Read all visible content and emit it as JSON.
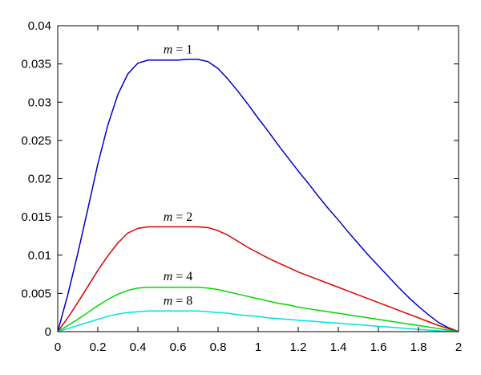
{
  "chart_data": {
    "type": "line",
    "title": "",
    "xlabel": "",
    "ylabel": "",
    "xlim": [
      0,
      2
    ],
    "ylim": [
      0,
      0.04
    ],
    "x_ticks": [
      {
        "value": 0,
        "label": "0"
      },
      {
        "value": 0.2,
        "label": "0.2"
      },
      {
        "value": 0.4,
        "label": "0.4"
      },
      {
        "value": 0.6,
        "label": "0.6"
      },
      {
        "value": 0.8,
        "label": "0.8"
      },
      {
        "value": 1,
        "label": "1"
      },
      {
        "value": 1.2,
        "label": "1.2"
      },
      {
        "value": 1.4,
        "label": "1.4"
      },
      {
        "value": 1.6,
        "label": "1.6"
      },
      {
        "value": 1.8,
        "label": "1.8"
      },
      {
        "value": 2,
        "label": "2"
      }
    ],
    "y_ticks": [
      {
        "value": 0,
        "label": "0"
      },
      {
        "value": 0.005,
        "label": "0.005"
      },
      {
        "value": 0.01,
        "label": "0.01"
      },
      {
        "value": 0.015,
        "label": "0.015"
      },
      {
        "value": 0.02,
        "label": "0.02"
      },
      {
        "value": 0.025,
        "label": "0.025"
      },
      {
        "value": 0.03,
        "label": "0.03"
      },
      {
        "value": 0.035,
        "label": "0.035"
      },
      {
        "value": 0.04,
        "label": "0.04"
      }
    ],
    "grid": false,
    "legend": "none",
    "series": [
      {
        "label_var": "m",
        "label_eq": " = ",
        "label_num": "1",
        "label_anchor": [
          0.6,
          0.0364
        ],
        "color": "#0000c8",
        "x": [
          0,
          0.05,
          0.1,
          0.15,
          0.2,
          0.25,
          0.3,
          0.35,
          0.4,
          0.45,
          0.5,
          0.55,
          0.6,
          0.65,
          0.7,
          0.75,
          0.8,
          0.85,
          0.9,
          0.95,
          1,
          1.05,
          1.1,
          1.15,
          1.2,
          1.25,
          1.3,
          1.35,
          1.4,
          1.45,
          1.5,
          1.55,
          1.6,
          1.65,
          1.7,
          1.75,
          1.8,
          1.85,
          1.9,
          1.95,
          2
        ],
        "y": [
          0,
          0.0048,
          0.0102,
          0.016,
          0.0219,
          0.027,
          0.031,
          0.0337,
          0.0351,
          0.0355,
          0.0355,
          0.0355,
          0.0355,
          0.0356,
          0.0356,
          0.0353,
          0.0344,
          0.033,
          0.0314,
          0.0297,
          0.0279,
          0.0262,
          0.0244,
          0.0227,
          0.021,
          0.0194,
          0.0177,
          0.0161,
          0.0146,
          0.013,
          0.0115,
          0.01,
          0.0086,
          0.0072,
          0.0058,
          0.0045,
          0.0033,
          0.0022,
          0.0012,
          0.0005,
          0
        ]
      },
      {
        "label_var": "m",
        "label_eq": " = ",
        "label_num": "2",
        "label_anchor": [
          0.6,
          0.0145
        ],
        "color": "#e00000",
        "x": [
          0,
          0.05,
          0.1,
          0.15,
          0.2,
          0.25,
          0.3,
          0.35,
          0.4,
          0.45,
          0.5,
          0.55,
          0.6,
          0.65,
          0.7,
          0.75,
          0.8,
          0.85,
          0.9,
          0.95,
          1,
          1.05,
          1.1,
          1.15,
          1.2,
          1.25,
          1.3,
          1.35,
          1.4,
          1.45,
          1.5,
          1.55,
          1.6,
          1.65,
          1.7,
          1.75,
          1.8,
          1.85,
          1.9,
          1.95,
          2
        ],
        "y": [
          0,
          0.0018,
          0.0038,
          0.0059,
          0.008,
          0.0099,
          0.0116,
          0.0129,
          0.0135,
          0.0137,
          0.0137,
          0.0137,
          0.0137,
          0.0137,
          0.0137,
          0.0136,
          0.0132,
          0.0126,
          0.0118,
          0.011,
          0.0103,
          0.0096,
          0.009,
          0.0084,
          0.0078,
          0.0073,
          0.0068,
          0.0063,
          0.0058,
          0.0053,
          0.0048,
          0.0043,
          0.0038,
          0.0033,
          0.0028,
          0.0023,
          0.0018,
          0.0013,
          0.0008,
          0.0004,
          0
        ]
      },
      {
        "label_var": "m",
        "label_eq": " = ",
        "label_num": "4",
        "label_anchor": [
          0.6,
          0.0067
        ],
        "color": "#00d800",
        "x": [
          0,
          0.05,
          0.1,
          0.15,
          0.2,
          0.25,
          0.3,
          0.35,
          0.4,
          0.45,
          0.5,
          0.55,
          0.6,
          0.65,
          0.7,
          0.75,
          0.8,
          0.85,
          0.9,
          0.95,
          1,
          1.05,
          1.1,
          1.15,
          1.2,
          1.25,
          1.3,
          1.35,
          1.4,
          1.45,
          1.5,
          1.55,
          1.6,
          1.65,
          1.7,
          1.75,
          1.8,
          1.85,
          1.9,
          1.95,
          2
        ],
        "y": [
          0,
          0.0008,
          0.0016,
          0.0025,
          0.0034,
          0.0042,
          0.0049,
          0.0054,
          0.0057,
          0.0058,
          0.0058,
          0.0058,
          0.0058,
          0.0058,
          0.0058,
          0.0057,
          0.0055,
          0.0052,
          0.0049,
          0.0046,
          0.0043,
          0.004,
          0.0037,
          0.0035,
          0.0032,
          0.003,
          0.0028,
          0.0026,
          0.0024,
          0.0022,
          0.002,
          0.0018,
          0.0016,
          0.0014,
          0.0012,
          0.001,
          0.0008,
          0.0006,
          0.0004,
          0.0002,
          0
        ]
      },
      {
        "label_var": "m",
        "label_eq": " = ",
        "label_num": "8",
        "label_anchor": [
          0.6,
          0.0035
        ],
        "color": "#00e0e0",
        "x": [
          0,
          0.05,
          0.1,
          0.15,
          0.2,
          0.25,
          0.3,
          0.35,
          0.4,
          0.45,
          0.5,
          0.55,
          0.6,
          0.65,
          0.7,
          0.75,
          0.8,
          0.85,
          0.9,
          0.95,
          1,
          1.05,
          1.1,
          1.15,
          1.2,
          1.25,
          1.3,
          1.35,
          1.4,
          1.45,
          1.5,
          1.55,
          1.6,
          1.65,
          1.7,
          1.75,
          1.8,
          1.85,
          1.9,
          1.95,
          2
        ],
        "y": [
          0,
          0.0004,
          0.0008,
          0.0012,
          0.0016,
          0.002,
          0.0023,
          0.0025,
          0.0026,
          0.0027,
          0.0027,
          0.0027,
          0.0027,
          0.0027,
          0.0027,
          0.0026,
          0.0025,
          0.0024,
          0.0022,
          0.0021,
          0.002,
          0.0018,
          0.0017,
          0.0016,
          0.0015,
          0.0014,
          0.0013,
          0.0012,
          0.0011,
          0.001,
          0.0009,
          0.0008,
          0.0007,
          0.0006,
          0.0005,
          0.0004,
          0.0003,
          0.0002,
          0.0001,
          5e-05,
          0
        ]
      }
    ]
  }
}
